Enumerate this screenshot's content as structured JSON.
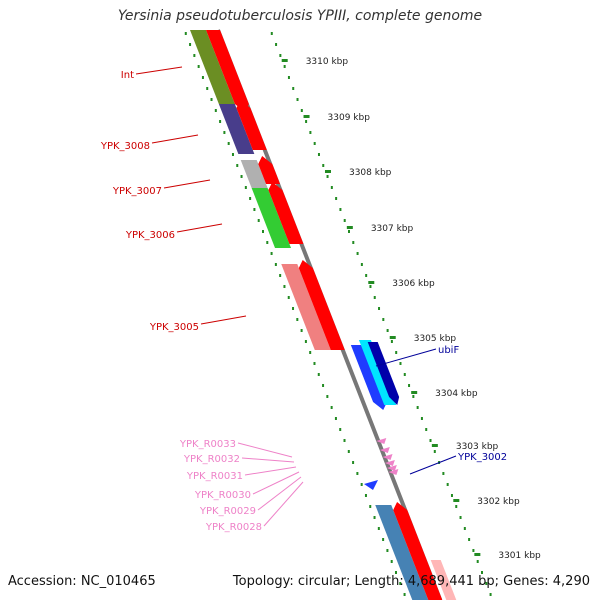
{
  "title": "Yersinia pseudotuberculosis YPIII, complete genome",
  "footer": {
    "accession": "Accession: NC_010465",
    "topology": "Topology: circular; Length: 4,689,441 bp; Genes: 4,290"
  },
  "colors": {
    "left_gene_label": "#cc0000",
    "right_gene_label": "#000099",
    "rna_label": "#ee82c8",
    "backbone": "#777777",
    "tick_dots": "#228b22",
    "forward_cds": "#ff0000"
  },
  "scale_labels": [
    "3310 kbp",
    "3309 kbp",
    "3308 kbp",
    "3307 kbp",
    "3306 kbp",
    "3305 kbp",
    "3304 kbp",
    "3303 kbp",
    "3302 kbp",
    "3301 kbp"
  ],
  "left_gene_labels": [
    "Int",
    "YPK_3008",
    "YPK_3007",
    "YPK_3006",
    "YPK_3005"
  ],
  "rna_labels": [
    "YPK_R0033",
    "YPK_R0032",
    "YPK_R0031",
    "YPK_R0030",
    "YPK_R0029",
    "YPK_R0028"
  ],
  "right_gene_labels": [
    "ubiF",
    "YPK_3002"
  ]
}
